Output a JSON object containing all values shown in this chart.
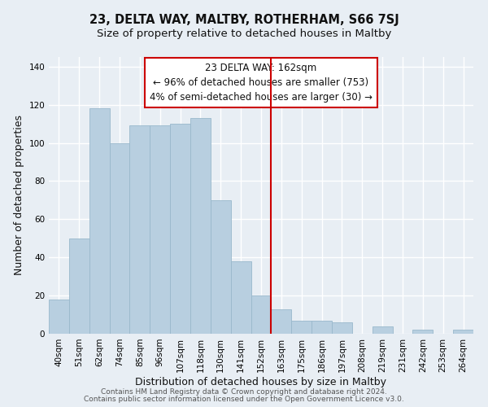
{
  "title": "23, DELTA WAY, MALTBY, ROTHERHAM, S66 7SJ",
  "subtitle": "Size of property relative to detached houses in Maltby",
  "xlabel": "Distribution of detached houses by size in Maltby",
  "ylabel": "Number of detached properties",
  "bar_labels": [
    "40sqm",
    "51sqm",
    "62sqm",
    "74sqm",
    "85sqm",
    "96sqm",
    "107sqm",
    "118sqm",
    "130sqm",
    "141sqm",
    "152sqm",
    "163sqm",
    "175sqm",
    "186sqm",
    "197sqm",
    "208sqm",
    "219sqm",
    "231sqm",
    "242sqm",
    "253sqm",
    "264sqm"
  ],
  "bar_values": [
    18,
    50,
    118,
    100,
    109,
    109,
    110,
    113,
    70,
    38,
    20,
    13,
    7,
    7,
    6,
    0,
    4,
    0,
    2,
    0,
    2
  ],
  "bar_color": "#b8cfe0",
  "bar_edge_color": "#99b8cc",
  "ylim": [
    0,
    145
  ],
  "yticks": [
    0,
    20,
    40,
    60,
    80,
    100,
    120,
    140
  ],
  "vline_index": 11,
  "vline_color": "#cc0000",
  "annotation_line1": "23 DELTA WAY: 162sqm",
  "annotation_line2": "← 96% of detached houses are smaller (753)",
  "annotation_line3": "4% of semi-detached houses are larger (30) →",
  "footer_line1": "Contains HM Land Registry data © Crown copyright and database right 2024.",
  "footer_line2": "Contains public sector information licensed under the Open Government Licence v3.0.",
  "background_color": "#e8eef4",
  "plot_bg_color": "#e8eef4",
  "grid_color": "#ffffff",
  "title_fontsize": 10.5,
  "subtitle_fontsize": 9.5,
  "axis_label_fontsize": 9,
  "tick_fontsize": 7.5,
  "footer_fontsize": 6.5,
  "annotation_fontsize": 8.5
}
